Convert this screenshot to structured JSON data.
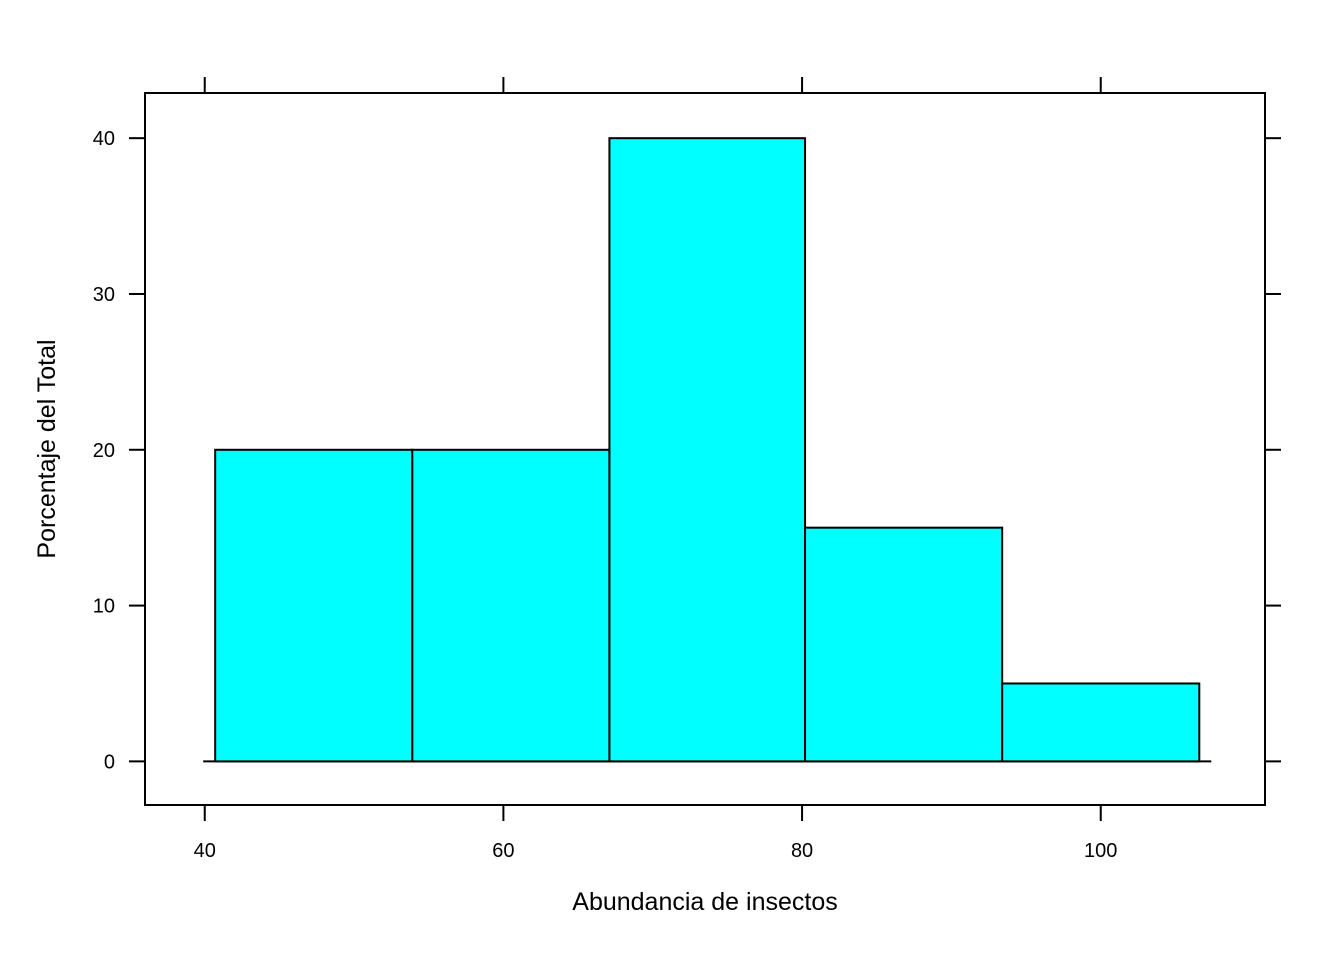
{
  "chart_data": {
    "type": "bar",
    "title": "",
    "xlabel": "Abundancia de insectos",
    "ylabel": "Porcentaje del Total",
    "bins": [
      {
        "from": 40.7,
        "to": 53.9,
        "value": 20
      },
      {
        "from": 53.9,
        "to": 67.1,
        "value": 20
      },
      {
        "from": 67.1,
        "to": 80.2,
        "value": 40
      },
      {
        "from": 80.2,
        "to": 93.4,
        "value": 15
      },
      {
        "from": 93.4,
        "to": 106.6,
        "value": 5
      }
    ],
    "xticks": [
      40,
      60,
      80,
      100
    ],
    "yticks": [
      0,
      10,
      20,
      30,
      40
    ],
    "xlim": [
      36,
      111
    ],
    "ylim": [
      -2.8,
      42.9
    ],
    "fill_color": "#00FFFF",
    "grid": false,
    "legend": false
  }
}
